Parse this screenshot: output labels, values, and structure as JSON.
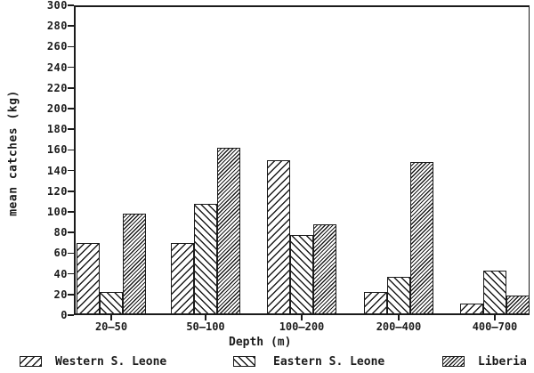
{
  "chart_data": {
    "type": "bar",
    "title": "",
    "ylabel": "mean catches (kg)",
    "xlabel": "Depth (m)",
    "categories": [
      "20–50",
      "50–100",
      "100–200",
      "200–400",
      "400–700"
    ],
    "series": [
      {
        "name": "Western S. Leone",
        "hatch": "forward-wide",
        "values": [
          70,
          70,
          150,
          22,
          11
        ]
      },
      {
        "name": "Eastern S. Leone",
        "hatch": "back-wide",
        "values": [
          22,
          108,
          78,
          37,
          43
        ]
      },
      {
        "name": "Liberia",
        "hatch": "forward-dense",
        "values": [
          98,
          162,
          88,
          148,
          19
        ]
      }
    ],
    "ylim": [
      0,
      300
    ],
    "ytick_step": 20,
    "grid": false,
    "legend_position": "bottom",
    "ink_color": "#1b1b1b",
    "background_color": "#ffffff"
  }
}
